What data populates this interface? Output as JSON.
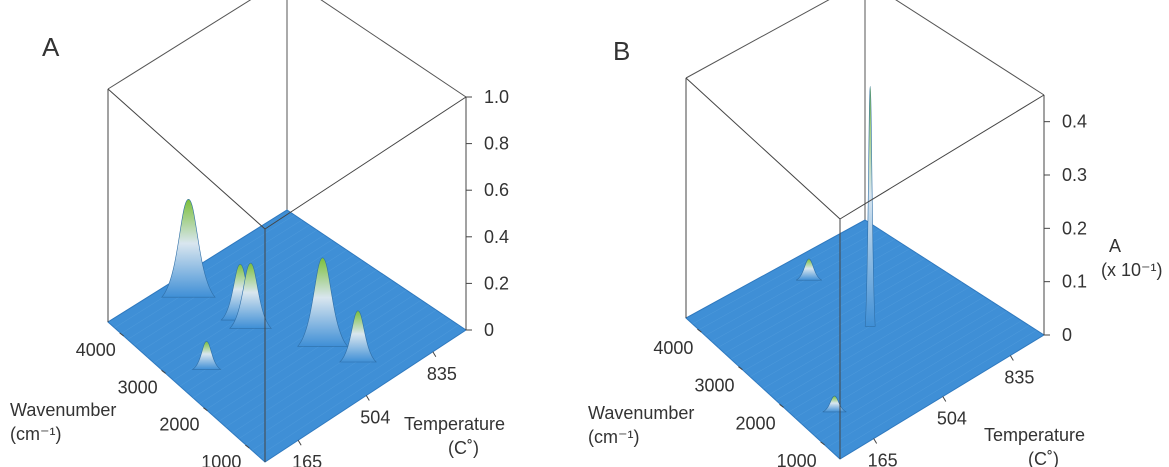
{
  "chart_data": [
    {
      "panel": "A",
      "type": "surface-3d",
      "xlabel_line1": "Wavenumber",
      "xlabel_line2": "(cm⁻¹)",
      "ylabel_line1": "Temperature",
      "ylabel_line2": "(C˚)",
      "zlabel_line1": "",
      "zlabel_line2": "",
      "x_ticks": [
        "4000",
        "3000",
        "2000",
        "1000"
      ],
      "y_ticks": [
        "165",
        "504",
        "835"
      ],
      "z_ticks": [
        "0",
        "0.2",
        "0.4",
        "0.6",
        "0.8",
        "1.0"
      ],
      "xlim": [
        500,
        4200
      ],
      "ylim": [
        0,
        1000
      ],
      "zlim": [
        0,
        1.0
      ],
      "peaks": [
        {
          "wavenumber": 2930,
          "temperature": 420,
          "absorbance": 0.24
        },
        {
          "wavenumber": 2700,
          "temperature": 420,
          "absorbance": 0.28
        },
        {
          "wavenumber": 3800,
          "temperature": 350,
          "absorbance": 0.42
        },
        {
          "wavenumber": 1700,
          "temperature": 560,
          "absorbance": 0.38
        },
        {
          "wavenumber": 1100,
          "temperature": 600,
          "absorbance": 0.22
        },
        {
          "wavenumber": 2500,
          "temperature": 140,
          "absorbance": 0.12
        }
      ],
      "colors": {
        "low": "#3f8fd6",
        "high": "#7cbf3a"
      }
    },
    {
      "panel": "B",
      "type": "surface-3d",
      "xlabel_line1": "Wavenumber",
      "xlabel_line2": "(cm⁻¹)",
      "ylabel_line1": "Temperature",
      "ylabel_line2": "(C˚)",
      "zlabel_line1": "A",
      "zlabel_line2": "(x 10⁻¹)",
      "x_ticks": [
        "4000",
        "3000",
        "2000",
        "1000"
      ],
      "y_ticks": [
        "165",
        "504",
        "835"
      ],
      "z_ticks": [
        "0",
        "0.1",
        "0.2",
        "0.3",
        "0.4"
      ],
      "xlim": [
        500,
        4200
      ],
      "ylim": [
        0,
        1000
      ],
      "zlim": [
        0,
        0.45
      ],
      "peaks": [
        {
          "wavenumber": 2350,
          "temperature": 560,
          "absorbance": 0.45
        },
        {
          "wavenumber": 3700,
          "temperature": 560,
          "absorbance": 0.04
        },
        {
          "wavenumber": 1300,
          "temperature": 140,
          "absorbance": 0.03
        }
      ],
      "colors": {
        "low": "#3f8fd6",
        "high": "#7cbf3a"
      }
    }
  ],
  "panels": {
    "a": "A",
    "b": "B"
  }
}
